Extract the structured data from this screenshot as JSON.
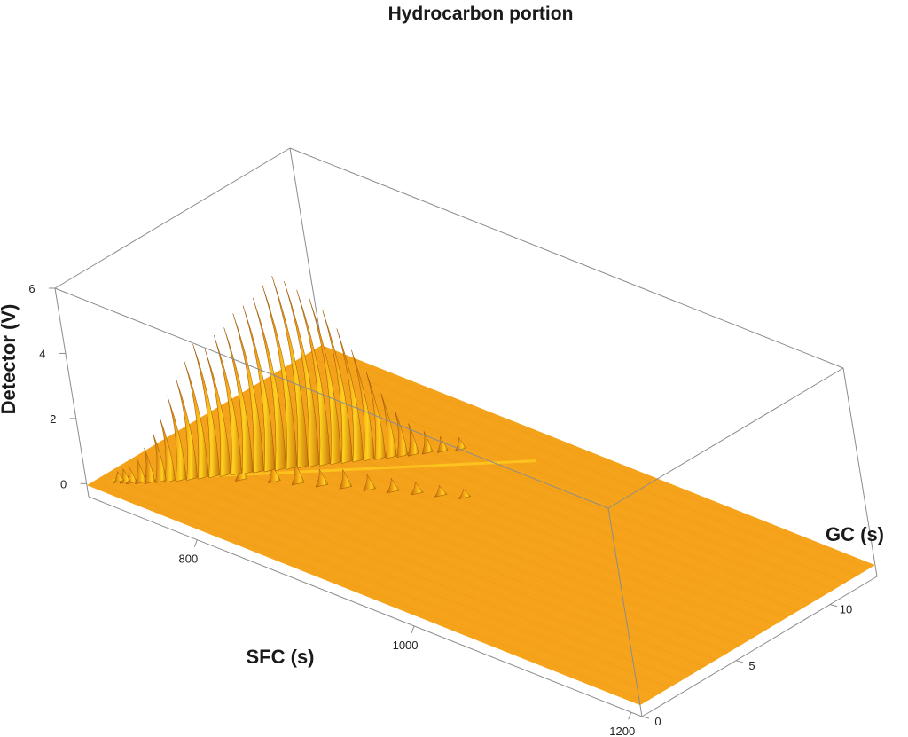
{
  "chart_data": {
    "type": "surface3d",
    "title": "Hydrocarbon portion",
    "xlabel": "SFC (s)",
    "ylabel": "GC (s)",
    "zlabel": "Detector (V)",
    "x_ticks": [
      800,
      1000,
      1200
    ],
    "y_ticks": [
      0,
      5,
      10
    ],
    "z_ticks": [
      0,
      2,
      4,
      6
    ],
    "xlim": [
      700,
      1210
    ],
    "ylim": [
      0,
      12.5
    ],
    "zlim": [
      -0.4,
      6
    ],
    "surface_color": "#f5a418",
    "highlight_color": "#ffd21f",
    "shadow_color": "#b86a08",
    "peaks": [
      {
        "sfc": 714,
        "gc": 0.9,
        "height": 0.25
      },
      {
        "sfc": 718,
        "gc": 1.0,
        "height": 0.35
      },
      {
        "sfc": 722,
        "gc": 1.1,
        "height": 0.45
      },
      {
        "sfc": 727,
        "gc": 1.3,
        "height": 0.7
      },
      {
        "sfc": 732,
        "gc": 1.5,
        "height": 1.0
      },
      {
        "sfc": 737,
        "gc": 1.8,
        "height": 1.4
      },
      {
        "sfc": 742,
        "gc": 2.0,
        "height": 1.9
      },
      {
        "sfc": 747,
        "gc": 2.3,
        "height": 2.5
      },
      {
        "sfc": 752,
        "gc": 2.6,
        "height": 3.0
      },
      {
        "sfc": 757,
        "gc": 2.9,
        "height": 3.5
      },
      {
        "sfc": 762,
        "gc": 3.2,
        "height": 4.0
      },
      {
        "sfc": 767,
        "gc": 3.5,
        "height": 3.8
      },
      {
        "sfc": 772,
        "gc": 3.8,
        "height": 4.2
      },
      {
        "sfc": 777,
        "gc": 4.1,
        "height": 4.4
      },
      {
        "sfc": 782,
        "gc": 4.4,
        "height": 4.8
      },
      {
        "sfc": 787,
        "gc": 4.7,
        "height": 5.0
      },
      {
        "sfc": 792,
        "gc": 5.0,
        "height": 5.2
      },
      {
        "sfc": 797,
        "gc": 5.3,
        "height": 5.6
      },
      {
        "sfc": 802,
        "gc": 5.6,
        "height": 5.8
      },
      {
        "sfc": 807,
        "gc": 5.9,
        "height": 5.6
      },
      {
        "sfc": 812,
        "gc": 6.2,
        "height": 5.3
      },
      {
        "sfc": 817,
        "gc": 6.5,
        "height": 5.0
      },
      {
        "sfc": 822,
        "gc": 6.8,
        "height": 4.6
      },
      {
        "sfc": 827,
        "gc": 7.1,
        "height": 4.0
      },
      {
        "sfc": 832,
        "gc": 7.4,
        "height": 3.3
      },
      {
        "sfc": 837,
        "gc": 7.7,
        "height": 2.6
      },
      {
        "sfc": 842,
        "gc": 8.0,
        "height": 1.9
      },
      {
        "sfc": 847,
        "gc": 8.3,
        "height": 1.3
      },
      {
        "sfc": 852,
        "gc": 8.6,
        "height": 0.9
      },
      {
        "sfc": 858,
        "gc": 9.0,
        "height": 0.6
      },
      {
        "sfc": 865,
        "gc": 9.4,
        "height": 0.4
      },
      {
        "sfc": 873,
        "gc": 9.9,
        "height": 0.3
      }
    ],
    "secondary_peaks": [
      {
        "sfc": 800,
        "gc": 4.2,
        "height": 0.5
      },
      {
        "sfc": 815,
        "gc": 4.6,
        "height": 0.6
      },
      {
        "sfc": 830,
        "gc": 5.0,
        "height": 0.45
      },
      {
        "sfc": 845,
        "gc": 5.4,
        "height": 0.5
      },
      {
        "sfc": 860,
        "gc": 5.8,
        "height": 0.4
      },
      {
        "sfc": 875,
        "gc": 6.2,
        "height": 0.35
      },
      {
        "sfc": 890,
        "gc": 6.6,
        "height": 0.3
      },
      {
        "sfc": 905,
        "gc": 7.0,
        "height": 0.25
      },
      {
        "sfc": 920,
        "gc": 7.4,
        "height": 0.2
      },
      {
        "sfc": 780,
        "gc": 3.6,
        "height": 0.4
      }
    ]
  }
}
